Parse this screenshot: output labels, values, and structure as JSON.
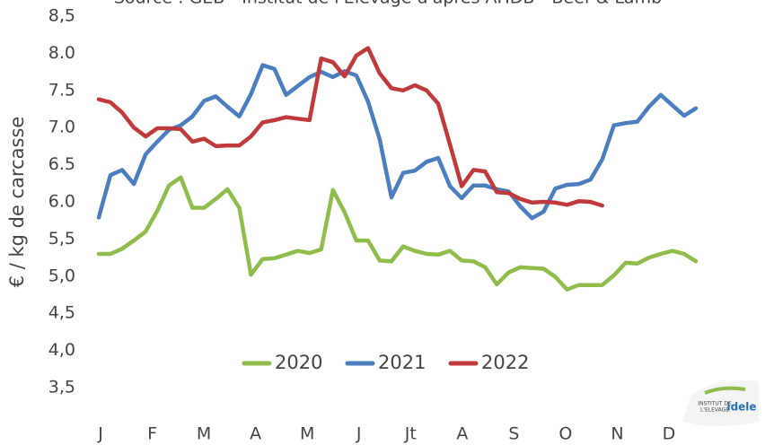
{
  "chart_data": {
    "type": "line",
    "title": "Source : GEB - Institut de l'Elevage d'après AHDB - Beef & Lamb",
    "y_label": "€ / kg de carcasse",
    "months": [
      "J",
      "F",
      "M",
      "A",
      "M",
      "J",
      "Jt",
      "A",
      "S",
      "O",
      "N",
      "D"
    ],
    "ylim": [
      3.5,
      8.5
    ],
    "yticks": [
      {
        "value": 3.5,
        "label": "3,5"
      },
      {
        "value": 4,
        "label": "4,0"
      },
      {
        "value": 4.5,
        "label": "4,5"
      },
      {
        "value": 5,
        "label": "5,0"
      },
      {
        "value": 5.5,
        "label": "5,5"
      },
      {
        "value": 6,
        "label": "6.0"
      },
      {
        "value": 6.5,
        "label": "6.5"
      },
      {
        "value": 7,
        "label": "7.0"
      },
      {
        "value": 7.5,
        "label": "7.5"
      },
      {
        "value": 8,
        "label": "8.0"
      },
      {
        "value": 8.5,
        "label": "8,5"
      }
    ],
    "series": [
      {
        "name": "2020",
        "color": "#8fbc4a",
        "values": [
          5.3,
          5.3,
          5.37,
          5.48,
          5.6,
          5.88,
          6.22,
          6.33,
          5.92,
          5.92,
          6.04,
          6.17,
          5.92,
          5.02,
          5.23,
          5.24,
          5.29,
          5.34,
          5.31,
          5.36,
          6.16,
          5.86,
          5.48,
          5.48,
          5.21,
          5.2,
          5.4,
          5.34,
          5.3,
          5.29,
          5.34,
          5.21,
          5.2,
          5.12,
          4.89,
          5.05,
          5.12,
          5.11,
          5.1,
          4.99,
          4.82,
          4.88,
          4.88,
          4.88,
          5.01,
          5.18,
          5.17,
          5.25,
          5.3,
          5.34,
          5.3,
          5.2
        ]
      },
      {
        "name": "2021",
        "color": "#4a7ebf",
        "values": [
          5.79,
          6.36,
          6.43,
          6.24,
          6.64,
          6.81,
          6.97,
          7.03,
          7.15,
          7.36,
          7.42,
          7.28,
          7.15,
          7.45,
          7.84,
          7.79,
          7.44,
          7.56,
          7.68,
          7.75,
          7.68,
          7.76,
          7.7,
          7.35,
          6.84,
          6.06,
          6.39,
          6.42,
          6.54,
          6.59,
          6.21,
          6.05,
          6.22,
          6.22,
          6.17,
          6.14,
          5.94,
          5.78,
          5.87,
          6.18,
          6.23,
          6.24,
          6.3,
          6.57,
          7.03,
          7.06,
          7.08,
          7.28,
          7.44,
          7.3,
          7.16,
          7.26
        ]
      },
      {
        "name": "2022",
        "color": "#c0393b",
        "values": [
          7.38,
          7.34,
          7.2,
          7.0,
          6.88,
          6.99,
          6.99,
          6.98,
          6.81,
          6.85,
          6.75,
          6.76,
          6.76,
          6.88,
          7.07,
          7.1,
          7.14,
          7.12,
          7.1,
          7.93,
          7.88,
          7.69,
          7.97,
          8.07,
          7.73,
          7.53,
          7.5,
          7.57,
          7.5,
          7.32,
          6.77,
          6.21,
          6.43,
          6.41,
          6.13,
          6.12,
          6.04,
          5.99,
          6.0,
          5.99,
          5.96,
          6.01,
          6.0,
          5.95,
          null,
          null,
          null,
          null,
          null,
          null,
          null,
          null
        ]
      }
    ],
    "logo_text": [
      "INSTITUT DE",
      "L'ELEVAGE",
      "idele"
    ]
  }
}
